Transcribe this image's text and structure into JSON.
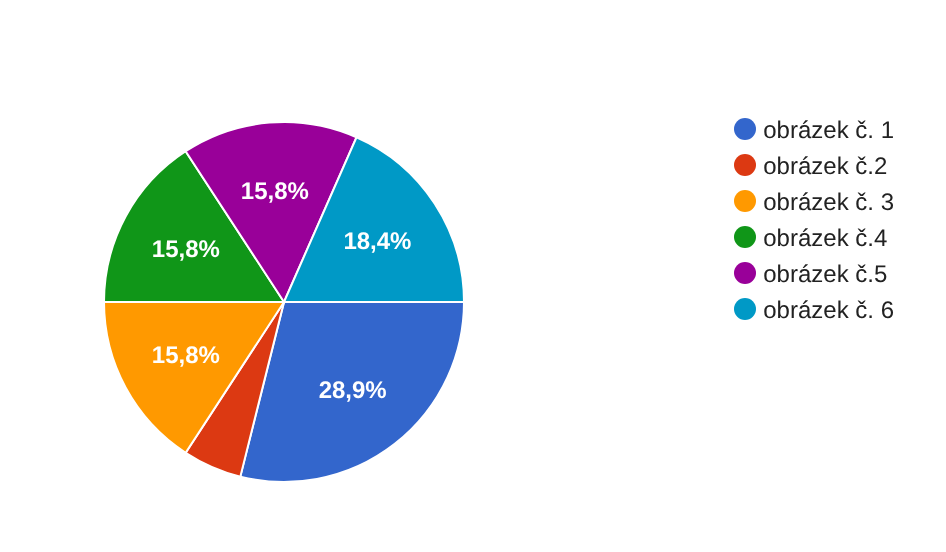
{
  "chart_data": {
    "type": "pie",
    "categories": [
      "obrázek č. 1",
      "obrázek č.2",
      "obrázek č. 3",
      "obrázek č.4",
      "obrázek č.5",
      "obrázek č. 6"
    ],
    "values": [
      28.9,
      5.3,
      15.8,
      15.8,
      15.8,
      18.4
    ],
    "colors": [
      "#3366cc",
      "#dc3912",
      "#ff9900",
      "#109618",
      "#990099",
      "#0099c6"
    ],
    "value_labels": [
      "28,9%",
      null,
      "15,8%",
      "15,8%",
      "15,8%",
      "18,4%"
    ],
    "legend": "right"
  }
}
